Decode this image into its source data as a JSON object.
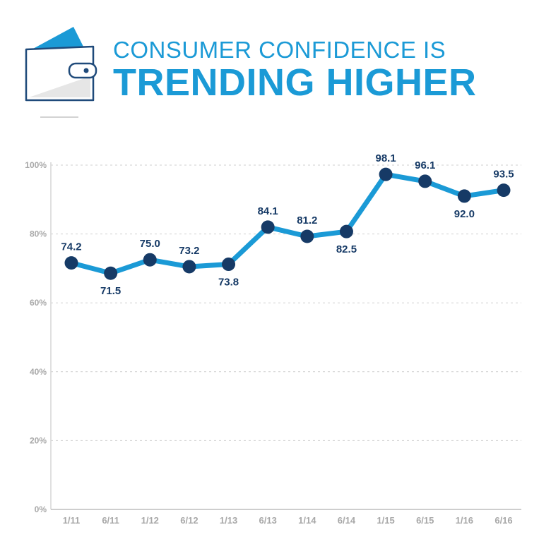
{
  "title": {
    "line1": "CONSUMER CONFIDENCE IS",
    "line2": "TRENDING HIGHER"
  },
  "icons": {
    "header_icon": "wallet-icon"
  },
  "colors": {
    "accent": "#1b9ad6",
    "line": "#1b9ad6",
    "marker": "#163a66",
    "label": "#163a66",
    "axis_text": "#a8a8a8",
    "grid": "#cfcfcf"
  },
  "chart_data": {
    "type": "line",
    "categories": [
      "1/11",
      "6/11",
      "1/12",
      "6/12",
      "1/13",
      "6/13",
      "1/14",
      "6/14",
      "1/15",
      "6/15",
      "1/16",
      "6/16"
    ],
    "values": [
      74.2,
      71.5,
      75.0,
      73.2,
      73.8,
      84.1,
      81.2,
      82.5,
      98.1,
      96.1,
      92.0,
      93.5
    ],
    "value_labels": [
      "74.2",
      "71.5",
      "75.0",
      "73.2",
      "73.8",
      "84.1",
      "81.2",
      "82.5",
      "98.1",
      "96.1",
      "92.0",
      "93.5"
    ],
    "label_positions": [
      "above",
      "below",
      "above",
      "above",
      "below",
      "above",
      "above",
      "below",
      "above",
      "above",
      "below",
      "above"
    ],
    "plot_values": [
      71.6,
      68.6,
      72.5,
      70.5,
      71.2,
      82.0,
      79.3,
      80.7,
      97.3,
      95.3,
      91.0,
      92.7
    ],
    "y_ticks": [
      "0%",
      "20%",
      "40%",
      "60%",
      "80%",
      "100%"
    ],
    "ylim": [
      0,
      100
    ],
    "grid": true,
    "xlabel": "",
    "ylabel": ""
  }
}
